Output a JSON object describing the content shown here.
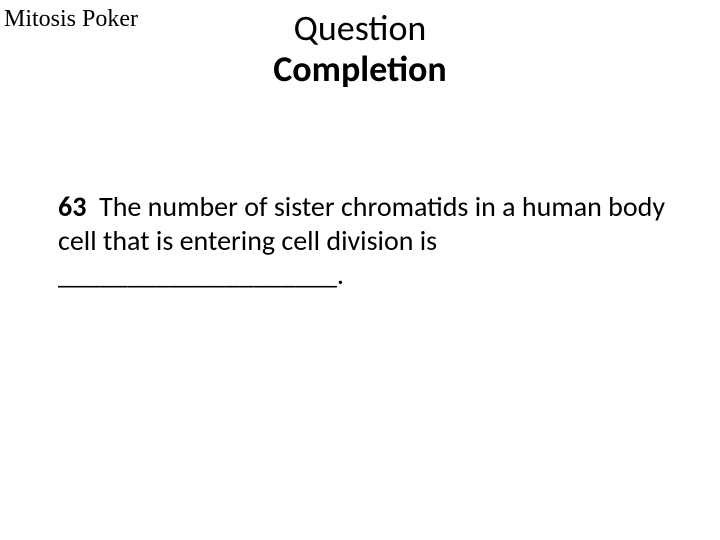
{
  "corner_label": "Mitosis Poker",
  "heading": {
    "line1": "Question",
    "line2": "Completion"
  },
  "question": {
    "number": "63",
    "text": "The number of sister chromatids in a human body cell that is entering cell division is ____________________."
  },
  "colors": {
    "background": "#ffffff",
    "text": "#000000"
  },
  "fonts": {
    "corner_family": "Times New Roman",
    "body_family": "Calibri",
    "corner_size_pt": 18,
    "heading_size_pt": 27,
    "body_size_pt": 21
  }
}
